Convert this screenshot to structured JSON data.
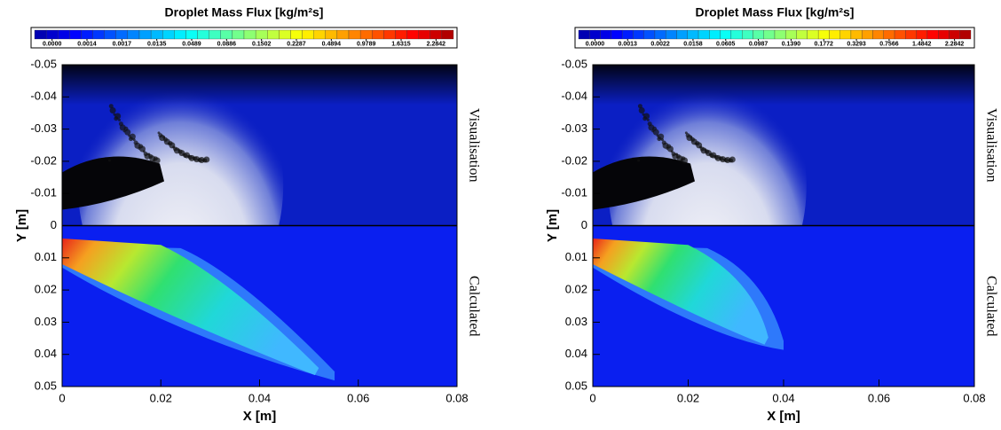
{
  "chart_data": [
    {
      "type": "contour",
      "title": "Droplet Mass Flux [kg/m²s]",
      "colorbar_ticks": [
        {
          "value": 0,
          "label": "0.0000"
        },
        {
          "value": 0.0014,
          "label": "0.0014"
        },
        {
          "value": 0.0017,
          "label": "0.0017"
        },
        {
          "value": 0.0135,
          "label": "0.0135"
        },
        {
          "value": 0.0489,
          "label": "0.0489"
        },
        {
          "value": 0.0886,
          "label": "0.0886"
        },
        {
          "value": 0.1502,
          "label": "0.1502"
        },
        {
          "value": 0.2287,
          "label": "0.2287"
        },
        {
          "value": 0.4894,
          "label": "0.4894"
        },
        {
          "value": 0.9789,
          "label": "0.9789"
        },
        {
          "value": 1.6315,
          "label": "1.6315"
        },
        {
          "value": 2.2842,
          "label": "2.2842"
        }
      ],
      "xlabel": "X [m]",
      "ylabel": "Y [m]",
      "xlim": [
        0,
        0.08
      ],
      "xticks": [
        0,
        0.02,
        0.04,
        0.06,
        0.08
      ],
      "ylim": [
        -0.05,
        0.05
      ],
      "yticks": [
        -0.05,
        -0.04,
        -0.03,
        -0.02,
        -0.01,
        0,
        0.01,
        0.02,
        0.03,
        0.04,
        0.05
      ],
      "y_inverted": true,
      "annotations": [
        "Visualisation",
        "Calculated"
      ]
    },
    {
      "type": "contour",
      "title": "Droplet Mass Flux [kg/m²s]",
      "colorbar_ticks": [
        {
          "value": 0,
          "label": "0.0000"
        },
        {
          "value": 0.0013,
          "label": "0.0013"
        },
        {
          "value": 0.0022,
          "label": "0.0022"
        },
        {
          "value": 0.0158,
          "label": "0.0158"
        },
        {
          "value": 0.0605,
          "label": "0.0605"
        },
        {
          "value": 0.0987,
          "label": "0.0987"
        },
        {
          "value": 0.139,
          "label": "0.1390"
        },
        {
          "value": 0.1772,
          "label": "0.1772"
        },
        {
          "value": 0.3293,
          "label": "0.3293"
        },
        {
          "value": 0.7566,
          "label": "0.7566"
        },
        {
          "value": 1.4842,
          "label": "1.4842"
        },
        {
          "value": 2.2842,
          "label": "2.2842"
        }
      ],
      "xlabel": "X [m]",
      "ylabel": "Y [m]",
      "xlim": [
        0,
        0.08
      ],
      "xticks": [
        0,
        0.02,
        0.04,
        0.06,
        0.08
      ],
      "ylim": [
        -0.05,
        0.05
      ],
      "yticks": [
        -0.05,
        -0.04,
        -0.03,
        -0.02,
        -0.01,
        0,
        0.01,
        0.02,
        0.03,
        0.04,
        0.05
      ],
      "y_inverted": true,
      "annotations": [
        "Visualisation",
        "Calculated"
      ]
    }
  ]
}
